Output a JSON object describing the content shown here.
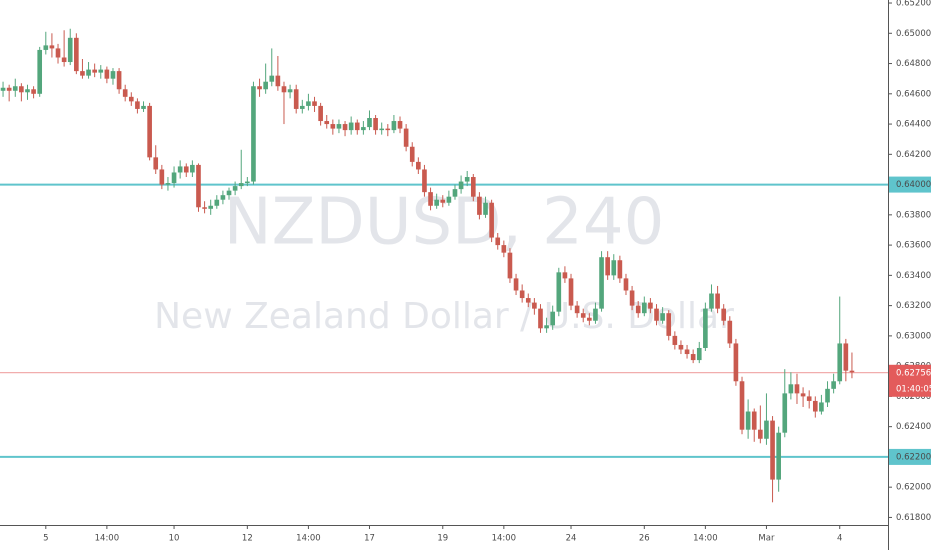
{
  "chart_data": {
    "type": "candlestick",
    "title": "NZDUSD, 240",
    "subtitle": "New Zealand Dollar / U.S. Dollar",
    "up_color": "#53a67c",
    "down_color": "#c95a4f",
    "grid": false,
    "ylim": [
      0.6175,
      0.6522
    ],
    "yticks": [
      {
        "value": 0.652,
        "label": "0.65200"
      },
      {
        "value": 0.65,
        "label": "0.65000"
      },
      {
        "value": 0.648,
        "label": "0.64800"
      },
      {
        "value": 0.646,
        "label": "0.64600"
      },
      {
        "value": 0.644,
        "label": "0.64400"
      },
      {
        "value": 0.642,
        "label": "0.64200"
      },
      {
        "value": 0.64,
        "label": "0.64000"
      },
      {
        "value": 0.638,
        "label": "0.63800"
      },
      {
        "value": 0.636,
        "label": "0.63600"
      },
      {
        "value": 0.634,
        "label": "0.63400"
      },
      {
        "value": 0.632,
        "label": "0.63200"
      },
      {
        "value": 0.63,
        "label": "0.63000"
      },
      {
        "value": 0.628,
        "label": "0.62800"
      },
      {
        "value": 0.626,
        "label": "0.62600"
      },
      {
        "value": 0.624,
        "label": "0.62400"
      },
      {
        "value": 0.622,
        "label": "0.62200"
      },
      {
        "value": 0.62,
        "label": "0.62000"
      },
      {
        "value": 0.618,
        "label": "0.61800"
      }
    ],
    "categories": [
      null,
      null,
      null,
      null,
      null,
      null,
      null,
      "5",
      null,
      null,
      null,
      null,
      null,
      null,
      null,
      null,
      null,
      "14:00",
      null,
      null,
      null,
      null,
      null,
      null,
      null,
      null,
      null,
      null,
      "10",
      null,
      null,
      null,
      null,
      null,
      null,
      null,
      null,
      null,
      null,
      null,
      "12",
      null,
      null,
      null,
      null,
      null,
      null,
      null,
      null,
      null,
      "14:00",
      null,
      null,
      null,
      null,
      null,
      null,
      null,
      null,
      null,
      "17",
      null,
      null,
      null,
      null,
      null,
      null,
      null,
      null,
      null,
      null,
      null,
      "19",
      null,
      null,
      null,
      null,
      null,
      null,
      null,
      null,
      null,
      "14:00",
      null,
      null,
      null,
      null,
      null,
      null,
      null,
      null,
      null,
      null,
      "24",
      null,
      null,
      null,
      null,
      null,
      null,
      null,
      null,
      null,
      null,
      null,
      "26",
      null,
      null,
      null,
      null,
      null,
      null,
      null,
      null,
      null,
      "14:00",
      null,
      null,
      null,
      null,
      null,
      null,
      null,
      null,
      null,
      "Mar",
      null,
      null,
      null,
      null,
      null,
      null,
      null,
      null,
      null,
      null,
      null,
      "4",
      null,
      null
    ],
    "candles": [
      [
        0.6462,
        0.6468,
        0.6458,
        0.6464
      ],
      [
        0.6464,
        0.6466,
        0.6455,
        0.6462
      ],
      [
        0.6462,
        0.647,
        0.6458,
        0.6465
      ],
      [
        0.6465,
        0.6467,
        0.6455,
        0.6461
      ],
      [
        0.6461,
        0.6466,
        0.6456,
        0.6463
      ],
      [
        0.6463,
        0.6465,
        0.6457,
        0.646
      ],
      [
        0.646,
        0.6491,
        0.6458,
        0.6489
      ],
      [
        0.6489,
        0.6501,
        0.6486,
        0.6492
      ],
      [
        0.6492,
        0.65,
        0.6484,
        0.649
      ],
      [
        0.649,
        0.6493,
        0.648,
        0.6484
      ],
      [
        0.6484,
        0.6502,
        0.6478,
        0.6481
      ],
      [
        0.6481,
        0.6503,
        0.6479,
        0.6497
      ],
      [
        0.6497,
        0.65,
        0.6473,
        0.6475
      ],
      [
        0.6475,
        0.6483,
        0.647,
        0.6472
      ],
      [
        0.6472,
        0.6481,
        0.647,
        0.6476
      ],
      [
        0.6476,
        0.648,
        0.6471,
        0.6474
      ],
      [
        0.6474,
        0.6479,
        0.647,
        0.6476
      ],
      [
        0.6476,
        0.6478,
        0.6467,
        0.647
      ],
      [
        0.647,
        0.6477,
        0.6466,
        0.6475
      ],
      [
        0.6475,
        0.6477,
        0.646,
        0.6463
      ],
      [
        0.6463,
        0.6466,
        0.6455,
        0.6458
      ],
      [
        0.6458,
        0.6461,
        0.6452,
        0.6455
      ],
      [
        0.6455,
        0.6457,
        0.6447,
        0.645
      ],
      [
        0.645,
        0.6455,
        0.6448,
        0.6452
      ],
      [
        0.6452,
        0.6454,
        0.6416,
        0.6418
      ],
      [
        0.6418,
        0.6426,
        0.6407,
        0.641
      ],
      [
        0.641,
        0.6413,
        0.6397,
        0.64
      ],
      [
        0.64,
        0.6405,
        0.6396,
        0.6401
      ],
      [
        0.6401,
        0.6412,
        0.6398,
        0.6408
      ],
      [
        0.6408,
        0.6416,
        0.6404,
        0.6412
      ],
      [
        0.6412,
        0.6414,
        0.6405,
        0.6408
      ],
      [
        0.6408,
        0.6416,
        0.6405,
        0.6413
      ],
      [
        0.6413,
        0.6414,
        0.6382,
        0.6385
      ],
      [
        0.6385,
        0.6389,
        0.6381,
        0.6384
      ],
      [
        0.6384,
        0.639,
        0.638,
        0.6386
      ],
      [
        0.6386,
        0.6393,
        0.6384,
        0.639
      ],
      [
        0.639,
        0.6396,
        0.6387,
        0.6393
      ],
      [
        0.6393,
        0.6398,
        0.639,
        0.6396
      ],
      [
        0.6396,
        0.6402,
        0.6393,
        0.6399
      ],
      [
        0.6399,
        0.6423,
        0.6397,
        0.6401
      ],
      [
        0.6401,
        0.6405,
        0.6399,
        0.6402
      ],
      [
        0.6402,
        0.6468,
        0.64,
        0.6465
      ],
      [
        0.6465,
        0.647,
        0.6458,
        0.6463
      ],
      [
        0.6463,
        0.648,
        0.646,
        0.6468
      ],
      [
        0.6468,
        0.649,
        0.6465,
        0.6472
      ],
      [
        0.6472,
        0.6485,
        0.6462,
        0.6465
      ],
      [
        0.6465,
        0.6468,
        0.644,
        0.6461
      ],
      [
        0.6461,
        0.6466,
        0.6457,
        0.6463
      ],
      [
        0.6463,
        0.6466,
        0.6447,
        0.645
      ],
      [
        0.645,
        0.6456,
        0.6447,
        0.6452
      ],
      [
        0.6452,
        0.646,
        0.6449,
        0.6455
      ],
      [
        0.6455,
        0.6458,
        0.6448,
        0.6452
      ],
      [
        0.6452,
        0.6454,
        0.6439,
        0.6442
      ],
      [
        0.6442,
        0.6446,
        0.6437,
        0.644
      ],
      [
        0.644,
        0.6443,
        0.6433,
        0.6437
      ],
      [
        0.6437,
        0.6443,
        0.6434,
        0.644
      ],
      [
        0.644,
        0.6442,
        0.6432,
        0.6436
      ],
      [
        0.6436,
        0.6445,
        0.6433,
        0.6441
      ],
      [
        0.6441,
        0.6443,
        0.6433,
        0.6436
      ],
      [
        0.6436,
        0.6442,
        0.6433,
        0.6438
      ],
      [
        0.6438,
        0.6449,
        0.6436,
        0.6444
      ],
      [
        0.6444,
        0.6446,
        0.6433,
        0.6436
      ],
      [
        0.6436,
        0.6441,
        0.6433,
        0.6437
      ],
      [
        0.6437,
        0.644,
        0.6432,
        0.6436
      ],
      [
        0.6436,
        0.6446,
        0.6434,
        0.6442
      ],
      [
        0.6442,
        0.6445,
        0.6434,
        0.6437
      ],
      [
        0.6437,
        0.644,
        0.6422,
        0.6425
      ],
      [
        0.6425,
        0.6428,
        0.6412,
        0.6415
      ],
      [
        0.6415,
        0.6418,
        0.6407,
        0.641
      ],
      [
        0.641,
        0.6413,
        0.6392,
        0.6395
      ],
      [
        0.6395,
        0.6398,
        0.6383,
        0.6386
      ],
      [
        0.6386,
        0.6394,
        0.6384,
        0.639
      ],
      [
        0.639,
        0.6393,
        0.6385,
        0.6388
      ],
      [
        0.6388,
        0.6396,
        0.6386,
        0.6392
      ],
      [
        0.6392,
        0.64,
        0.639,
        0.6397
      ],
      [
        0.6397,
        0.6406,
        0.6394,
        0.6402
      ],
      [
        0.6402,
        0.6409,
        0.6399,
        0.6405
      ],
      [
        0.6405,
        0.6407,
        0.6389,
        0.6392
      ],
      [
        0.6392,
        0.6395,
        0.6377,
        0.638
      ],
      [
        0.638,
        0.6392,
        0.6378,
        0.6388
      ],
      [
        0.6388,
        0.639,
        0.6362,
        0.6365
      ],
      [
        0.6365,
        0.6368,
        0.6357,
        0.636
      ],
      [
        0.636,
        0.6363,
        0.6352,
        0.6355
      ],
      [
        0.6355,
        0.6358,
        0.6335,
        0.6338
      ],
      [
        0.6338,
        0.6341,
        0.6327,
        0.633
      ],
      [
        0.633,
        0.6334,
        0.6322,
        0.6325
      ],
      [
        0.6325,
        0.6328,
        0.6319,
        0.6322
      ],
      [
        0.6322,
        0.6325,
        0.6314,
        0.6318
      ],
      [
        0.6318,
        0.6321,
        0.6302,
        0.6305
      ],
      [
        0.6305,
        0.6312,
        0.6302,
        0.6307
      ],
      [
        0.6307,
        0.632,
        0.6304,
        0.6316
      ],
      [
        0.6316,
        0.6345,
        0.6313,
        0.6342
      ],
      [
        0.6342,
        0.6346,
        0.6335,
        0.6338
      ],
      [
        0.6338,
        0.6341,
        0.6317,
        0.632
      ],
      [
        0.632,
        0.6323,
        0.6312,
        0.6315
      ],
      [
        0.6315,
        0.6318,
        0.6309,
        0.6312
      ],
      [
        0.6312,
        0.6315,
        0.6307,
        0.631
      ],
      [
        0.631,
        0.6322,
        0.6308,
        0.6318
      ],
      [
        0.6318,
        0.6356,
        0.6316,
        0.6352
      ],
      [
        0.6352,
        0.6356,
        0.6337,
        0.634
      ],
      [
        0.634,
        0.6354,
        0.6337,
        0.635
      ],
      [
        0.635,
        0.6353,
        0.6335,
        0.6338
      ],
      [
        0.6338,
        0.6341,
        0.6327,
        0.633
      ],
      [
        0.633,
        0.6333,
        0.6317,
        0.632
      ],
      [
        0.632,
        0.6323,
        0.6312,
        0.6315
      ],
      [
        0.6315,
        0.6326,
        0.6313,
        0.6322
      ],
      [
        0.6322,
        0.6325,
        0.6315,
        0.6318
      ],
      [
        0.6318,
        0.6321,
        0.6307,
        0.631
      ],
      [
        0.631,
        0.6319,
        0.6308,
        0.6315
      ],
      [
        0.6315,
        0.6317,
        0.6297,
        0.63
      ],
      [
        0.63,
        0.6303,
        0.6291,
        0.6294
      ],
      [
        0.6294,
        0.6297,
        0.6288,
        0.6291
      ],
      [
        0.6291,
        0.6294,
        0.6285,
        0.6288
      ],
      [
        0.6288,
        0.6291,
        0.6282,
        0.6284
      ],
      [
        0.6284,
        0.6296,
        0.6282,
        0.6292
      ],
      [
        0.6292,
        0.6322,
        0.629,
        0.6318
      ],
      [
        0.6318,
        0.6334,
        0.6316,
        0.6328
      ],
      [
        0.6328,
        0.6333,
        0.6315,
        0.6318
      ],
      [
        0.6318,
        0.6321,
        0.6307,
        0.631
      ],
      [
        0.631,
        0.6313,
        0.6292,
        0.6295
      ],
      [
        0.6295,
        0.6298,
        0.6267,
        0.627
      ],
      [
        0.627,
        0.6273,
        0.6235,
        0.6238
      ],
      [
        0.6238,
        0.6258,
        0.6232,
        0.625
      ],
      [
        0.625,
        0.6252,
        0.623,
        0.6238
      ],
      [
        0.6238,
        0.6254,
        0.6229,
        0.6232
      ],
      [
        0.6232,
        0.6262,
        0.6228,
        0.6244
      ],
      [
        0.6244,
        0.6247,
        0.619,
        0.6205
      ],
      [
        0.6205,
        0.624,
        0.6197,
        0.6236
      ],
      [
        0.6236,
        0.6278,
        0.6233,
        0.6262
      ],
      [
        0.6262,
        0.6276,
        0.6258,
        0.6268
      ],
      [
        0.6268,
        0.6275,
        0.6255,
        0.6262
      ],
      [
        0.6262,
        0.6266,
        0.6253,
        0.626
      ],
      [
        0.626,
        0.6264,
        0.6252,
        0.6257
      ],
      [
        0.6257,
        0.626,
        0.6246,
        0.625
      ],
      [
        0.625,
        0.6261,
        0.6248,
        0.6256
      ],
      [
        0.6256,
        0.627,
        0.6253,
        0.6265
      ],
      [
        0.6265,
        0.6275,
        0.6262,
        0.627
      ],
      [
        0.627,
        0.6326,
        0.6268,
        0.6295
      ],
      [
        0.6295,
        0.6298,
        0.627,
        0.6277
      ],
      [
        0.6277,
        0.6289,
        0.6272,
        0.6276
      ]
    ],
    "levels": [
      {
        "value": 0.64,
        "label": "0.64000",
        "color": "#5fc4cc"
      },
      {
        "value": 0.622,
        "label": "0.62200",
        "color": "#5fc4cc"
      }
    ],
    "last_price": {
      "value": 0.62756,
      "color": "#e35b5b",
      "countdown": "01:40:05"
    }
  }
}
